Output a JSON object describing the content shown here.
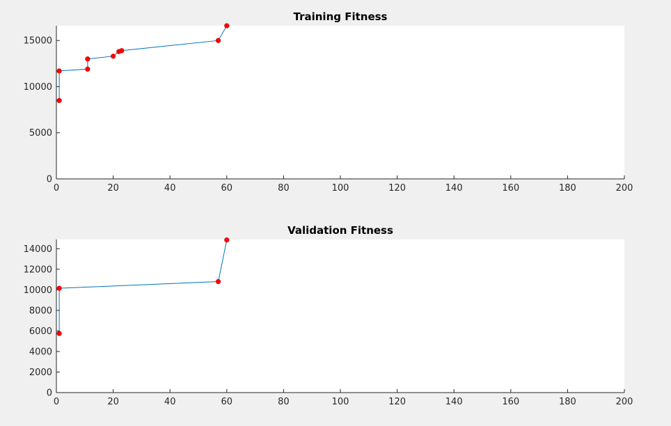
{
  "chart_data": [
    {
      "type": "line",
      "title": "Training Fitness",
      "xlabel": "",
      "ylabel": "",
      "xlim": [
        0,
        200
      ],
      "ylim": [
        0,
        16600
      ],
      "xticks": [
        0,
        20,
        40,
        60,
        80,
        100,
        120,
        140,
        160,
        180,
        200
      ],
      "yticks": [
        0,
        5000,
        10000,
        15000
      ],
      "grid": false,
      "series": [
        {
          "line_color": "#0072bd",
          "marker_color": "#ff0000",
          "x": [
            1,
            1,
            11,
            11,
            20,
            22,
            23,
            57,
            60
          ],
          "y": [
            8500,
            11700,
            11900,
            13000,
            13300,
            13800,
            13900,
            15000,
            16600
          ]
        }
      ]
    },
    {
      "type": "line",
      "title": "Validation Fitness",
      "xlabel": "",
      "ylabel": "",
      "xlim": [
        0,
        200
      ],
      "ylim": [
        0,
        14900
      ],
      "xticks": [
        0,
        20,
        40,
        60,
        80,
        100,
        120,
        140,
        160,
        180,
        200
      ],
      "yticks": [
        0,
        2000,
        4000,
        6000,
        8000,
        10000,
        12000,
        14000
      ],
      "grid": false,
      "series": [
        {
          "line_color": "#0072bd",
          "marker_color": "#ff0000",
          "x": [
            1,
            1,
            57,
            60
          ],
          "y": [
            5750,
            10150,
            10800,
            14850
          ]
        }
      ]
    }
  ]
}
